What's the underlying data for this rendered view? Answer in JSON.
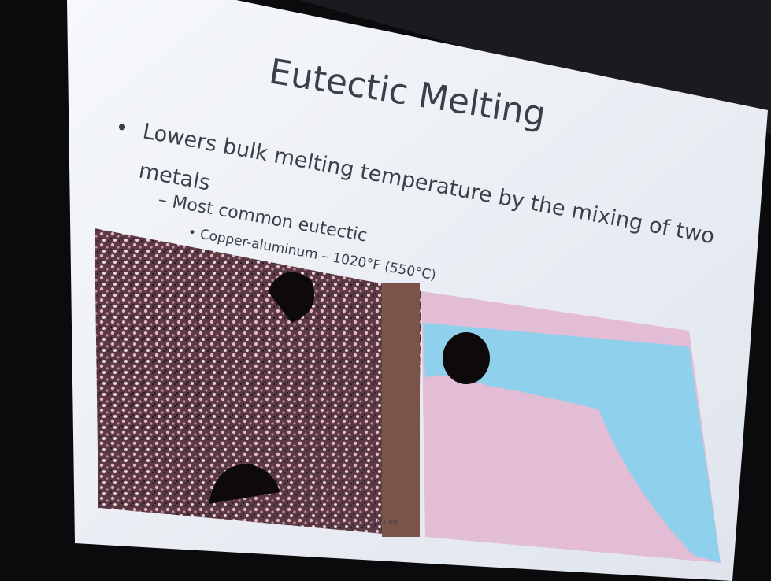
{
  "slide": {
    "title": "Eutectic Melting",
    "bullets": [
      "Lowers bulk melting temperature by the mixing of two",
      "metals",
      "– Most common eutectic",
      "• Copper-aluminum – 1020°F (550°C)"
    ],
    "scale_bar": "1.0 mm"
  }
}
